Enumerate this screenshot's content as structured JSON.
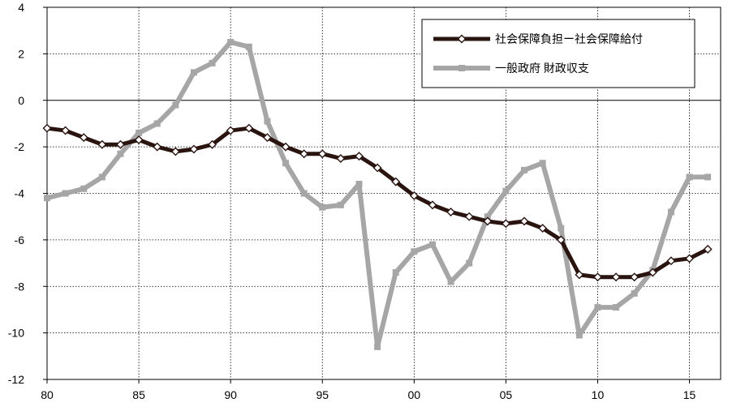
{
  "chart_data": {
    "type": "line",
    "title": "",
    "xlabel": "",
    "ylabel": "",
    "x": [
      1980,
      1981,
      1982,
      1983,
      1984,
      1985,
      1986,
      1987,
      1988,
      1989,
      1990,
      1991,
      1992,
      1993,
      1994,
      1995,
      1996,
      1997,
      1998,
      1999,
      2000,
      2001,
      2002,
      2003,
      2004,
      2005,
      2006,
      2007,
      2008,
      2009,
      2010,
      2011,
      2012,
      2013,
      2014,
      2015,
      2016
    ],
    "xlim": [
      1980,
      2016.7
    ],
    "ylim": [
      -12,
      4
    ],
    "x_ticks": [
      {
        "value": 1980,
        "label": "80"
      },
      {
        "value": 1985,
        "label": "85"
      },
      {
        "value": 1990,
        "label": "90"
      },
      {
        "value": 1995,
        "label": "95"
      },
      {
        "value": 2000,
        "label": "00"
      },
      {
        "value": 2005,
        "label": "05"
      },
      {
        "value": 2010,
        "label": "10"
      },
      {
        "value": 2015,
        "label": "15"
      }
    ],
    "y_ticks": [
      {
        "value": 4,
        "label": "4"
      },
      {
        "value": 2,
        "label": "2"
      },
      {
        "value": 0,
        "label": "0"
      },
      {
        "value": -2,
        "label": "-2"
      },
      {
        "value": -4,
        "label": "-4"
      },
      {
        "value": -6,
        "label": "-6"
      },
      {
        "value": -8,
        "label": "-8"
      },
      {
        "value": -10,
        "label": "-10"
      },
      {
        "value": -12,
        "label": "-12"
      }
    ],
    "grid": "dotted",
    "legend_position": "top-right",
    "series": [
      {
        "name": "社会保障負担ー社会保障給付",
        "color": "#2a1410",
        "marker": "diamond",
        "values": [
          -1.2,
          -1.3,
          -1.6,
          -1.9,
          -1.9,
          -1.7,
          -2.0,
          -2.2,
          -2.1,
          -1.9,
          -1.3,
          -1.2,
          -1.6,
          -2.0,
          -2.3,
          -2.3,
          -2.5,
          -2.4,
          -2.9,
          -3.5,
          -4.1,
          -4.5,
          -4.8,
          -5.0,
          -5.2,
          -5.3,
          -5.2,
          -5.5,
          -6.0,
          -7.5,
          -7.6,
          -7.6,
          -7.6,
          -7.4,
          -6.9,
          -6.8,
          -6.4
        ]
      },
      {
        "name": "一般政府 財政収支",
        "color": "#a6a6a6",
        "marker": "square",
        "values": [
          -4.2,
          -4.0,
          -3.8,
          -3.3,
          -2.3,
          -1.4,
          -1.0,
          -0.2,
          1.2,
          1.6,
          2.5,
          2.3,
          -0.9,
          -2.7,
          -4.0,
          -4.6,
          -4.5,
          -3.6,
          -10.6,
          -7.4,
          -6.5,
          -6.2,
          -7.8,
          -7.0,
          -5.0,
          -3.9,
          -3.0,
          -2.7,
          -5.5,
          -10.1,
          -8.9,
          -8.9,
          -8.3,
          -7.3,
          -4.8,
          -3.3,
          -3.3
        ]
      }
    ]
  }
}
